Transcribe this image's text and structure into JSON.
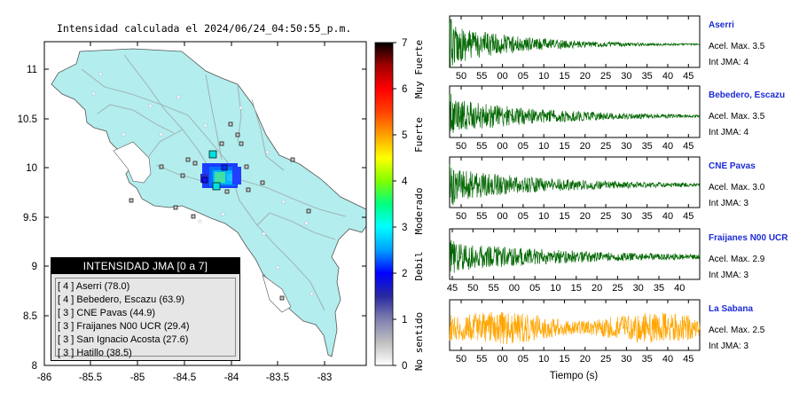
{
  "map": {
    "title": "Intensidad calculada el 2024/06/24_04:50:55_p.m.",
    "lat_ticks": [
      "11",
      "10.5",
      "10",
      "9.5",
      "9",
      "8.5",
      "8"
    ],
    "lon_ticks": [
      "-86",
      "-85.5",
      "-85",
      "-84.5",
      "-84",
      "-83.5",
      "-83"
    ],
    "legend": {
      "header": "INTENSIDAD JMA [0 a 7]",
      "rows": [
        "[ 4 ]  Aserri (78.0)",
        "[ 4 ]  Bebedero, Escazu (63.9)",
        "[ 3 ]  CNE Pavas (44.9)",
        "[ 3 ]  Fraijanes N00 UCR (29.4)",
        "[ 3 ]  San Ignacio Acosta (27.6)",
        "[ 3 ]  Hatillo (38.5)"
      ]
    }
  },
  "colorbar": {
    "ticks": [
      "7",
      "6",
      "5",
      "4",
      "3",
      "2",
      "1",
      "0"
    ],
    "labels": [
      "Muy Fuerte",
      "Fuerte",
      "Moderado",
      "Debil",
      "No sentido"
    ],
    "colors": [
      "#ffffff",
      "#c0c0c0",
      "#8080b0",
      "#2a2aa0",
      "#0000ff",
      "#00a0ff",
      "#00ffff",
      "#00ff80",
      "#80ff00",
      "#ffff00",
      "#ffa000",
      "#ff4000",
      "#ff0000",
      "#a00000",
      "#000000"
    ]
  },
  "waveforms": {
    "xlabel": "Tiempo (s)",
    "traces": [
      {
        "name": "Aserri",
        "acel": "Acel. Max. 3.5",
        "int": "Int JMA: 4",
        "color": "#006600",
        "ticks": [
          "50",
          "55",
          "00",
          "05",
          "10",
          "15",
          "20",
          "25",
          "30",
          "35",
          "40",
          "45"
        ]
      },
      {
        "name": "Bebedero, Escazu",
        "acel": "Acel. Max. 3.5",
        "int": "Int JMA: 4",
        "color": "#006600",
        "ticks": [
          "50",
          "55",
          "00",
          "05",
          "10",
          "15",
          "20",
          "25",
          "30",
          "35",
          "40",
          "45"
        ]
      },
      {
        "name": "CNE Pavas",
        "acel": "Acel. Max. 3.0",
        "int": "Int JMA: 3",
        "color": "#006600",
        "ticks": [
          "50",
          "55",
          "00",
          "05",
          "10",
          "15",
          "20",
          "25",
          "30",
          "35",
          "40",
          "45"
        ]
      },
      {
        "name": "Fraijanes N00 UCR",
        "acel": "Acel. Max. 2.9",
        "int": "Int JMA: 3",
        "color": "#006600",
        "ticks": [
          "45",
          "50",
          "55",
          "00",
          "05",
          "10",
          "15",
          "20",
          "25",
          "30",
          "35",
          "40"
        ]
      },
      {
        "name": "La Sabana",
        "acel": "Acel. Max. 2.5",
        "int": "Int JMA: 3",
        "color": "#ffa500",
        "ticks": [
          "50",
          "55",
          "00",
          "05",
          "10",
          "15",
          "20",
          "25",
          "30",
          "35",
          "40",
          "45"
        ]
      }
    ]
  },
  "chart_data": [
    {
      "type": "heatmap",
      "title": "Intensidad calculada el 2024/06/24_04:50:55_p.m.",
      "xlim": [
        -86,
        -82.6
      ],
      "ylim": [
        8,
        11.3
      ],
      "colorbar_range": [
        0,
        7
      ],
      "colorbar_labels": [
        "No sentido",
        "Debil",
        "Moderado",
        "Fuerte",
        "Muy Fuerte"
      ],
      "legend_placement": "bottom-left",
      "stations": [
        {
          "name": "Aserri",
          "intensity": 4,
          "value": 78.0
        },
        {
          "name": "Bebedero, Escazu",
          "intensity": 4,
          "value": 63.9
        },
        {
          "name": "CNE Pavas",
          "intensity": 3,
          "value": 44.9
        },
        {
          "name": "Fraijanes N00 UCR",
          "intensity": 3,
          "value": 29.4
        },
        {
          "name": "San Ignacio Acosta",
          "intensity": 3,
          "value": 27.6
        },
        {
          "name": "Hatillo",
          "intensity": 3,
          "value": 38.5
        }
      ]
    },
    {
      "type": "line",
      "xlabel": "Tiempo (s)",
      "series": [
        {
          "name": "Aserri",
          "acel_max": 3.5,
          "int_jma": 4
        },
        {
          "name": "Bebedero, Escazu",
          "acel_max": 3.5,
          "int_jma": 4
        },
        {
          "name": "CNE Pavas",
          "acel_max": 3.0,
          "int_jma": 3
        },
        {
          "name": "Fraijanes N00 UCR",
          "acel_max": 2.9,
          "int_jma": 3
        },
        {
          "name": "La Sabana",
          "acel_max": 2.5,
          "int_jma": 3
        }
      ]
    }
  ]
}
